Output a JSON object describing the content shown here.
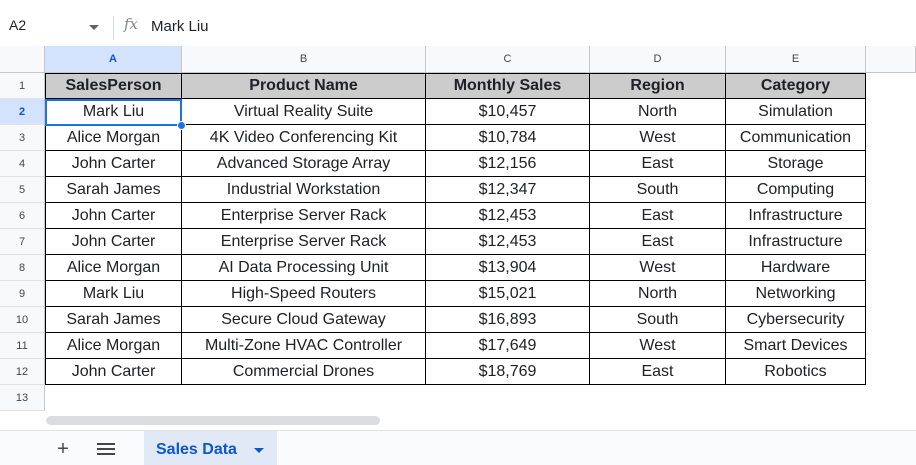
{
  "formula_bar": {
    "cell_ref": "A2",
    "fx_icon": "function-icon",
    "value": "Mark Liu"
  },
  "columns": [
    "A",
    "B",
    "C",
    "D",
    "E"
  ],
  "row_numbers": [
    "1",
    "2",
    "3",
    "4",
    "5",
    "6",
    "7",
    "8",
    "9",
    "10",
    "11",
    "12",
    "13"
  ],
  "table": {
    "headers": [
      "SalesPerson",
      "Product Name",
      "Monthly Sales",
      "Region",
      "Category"
    ],
    "rows": [
      [
        "Mark Liu",
        "Virtual Reality Suite",
        "$10,457",
        "North",
        "Simulation"
      ],
      [
        "Alice Morgan",
        "4K Video Conferencing Kit",
        "$10,784",
        "West",
        "Communication"
      ],
      [
        "John Carter",
        "Advanced Storage Array",
        "$12,156",
        "East",
        "Storage"
      ],
      [
        "Sarah James",
        "Industrial Workstation",
        "$12,347",
        "South",
        "Computing"
      ],
      [
        "John Carter",
        "Enterprise Server Rack",
        "$12,453",
        "East",
        "Infrastructure"
      ],
      [
        "John Carter",
        "Enterprise Server Rack",
        "$12,453",
        "East",
        "Infrastructure"
      ],
      [
        "Alice Morgan",
        "AI Data Processing Unit",
        "$13,904",
        "West",
        "Hardware"
      ],
      [
        "Mark Liu",
        "High-Speed Routers",
        "$15,021",
        "North",
        "Networking"
      ],
      [
        "Sarah James",
        "Secure Cloud Gateway",
        "$16,893",
        "South",
        "Cybersecurity"
      ],
      [
        "Alice Morgan",
        "Multi-Zone HVAC Controller",
        "$17,649",
        "West",
        "Smart Devices"
      ],
      [
        "John Carter",
        "Commercial Drones",
        "$18,769",
        "East",
        "Robotics"
      ]
    ]
  },
  "sheet_bar": {
    "add_icon": "plus-icon",
    "add_symbol": "+",
    "menu_icon": "all-sheets-icon",
    "active_tab": "Sales Data"
  },
  "colors": {
    "accent": "#1a73e8",
    "header_fill": "#cccccc",
    "active_header": "#d3e3fd"
  }
}
